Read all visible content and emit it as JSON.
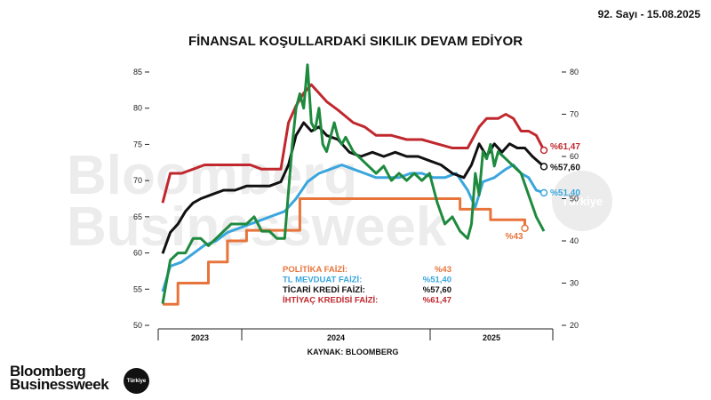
{
  "header": {
    "issue": "92. Sayı - 15.08.2025"
  },
  "brand": {
    "name_line1": "Bloomberg",
    "name_line2": "Businessweek",
    "badge": "Türkiye",
    "watermark_line1": "Bloomberg",
    "watermark_line2": "Businessweek",
    "watermark_badge": "Türkiye"
  },
  "chart_data": {
    "type": "line",
    "title": "FİNANSAL KOŞULLARDAKİ SIKILIK DEVAM EDİYOR",
    "source": "KAYNAK: BLOOMBERG",
    "grid": false,
    "x_ticks": [
      "2023",
      "2024",
      "2025"
    ],
    "y_left": {
      "lim": [
        50,
        85
      ],
      "ticks": [
        50,
        55,
        60,
        65,
        70,
        75,
        80,
        85
      ]
    },
    "y_right": {
      "lim": [
        20,
        80
      ],
      "ticks": [
        20,
        30,
        40,
        50,
        60,
        70,
        80
      ]
    },
    "legend_position": "bottom-center",
    "series": [
      {
        "name": "POLİTİKA FAİZİ:",
        "value_label": "%43",
        "end_label": "%43",
        "color": "#e8743b",
        "axis": "right",
        "points": [
          [
            0.0,
            25
          ],
          [
            0.04,
            25
          ],
          [
            0.04,
            30
          ],
          [
            0.12,
            30
          ],
          [
            0.12,
            35
          ],
          [
            0.17,
            35
          ],
          [
            0.17,
            40
          ],
          [
            0.22,
            40
          ],
          [
            0.22,
            42.5
          ],
          [
            0.36,
            42.5
          ],
          [
            0.36,
            50
          ],
          [
            0.78,
            50
          ],
          [
            0.78,
            47.5
          ],
          [
            0.86,
            47.5
          ],
          [
            0.86,
            45
          ],
          [
            0.95,
            45
          ],
          [
            0.95,
            43
          ]
        ]
      },
      {
        "name": "TL MEVDUAT FAİZİ:",
        "value_label": "%51,40",
        "end_label": "%51,40",
        "color": "#3aa6dd",
        "axis": "right",
        "points": [
          [
            0.0,
            28
          ],
          [
            0.02,
            34
          ],
          [
            0.05,
            35
          ],
          [
            0.08,
            37
          ],
          [
            0.11,
            39
          ],
          [
            0.14,
            40
          ],
          [
            0.17,
            42
          ],
          [
            0.2,
            43
          ],
          [
            0.23,
            44
          ],
          [
            0.26,
            45
          ],
          [
            0.29,
            46
          ],
          [
            0.32,
            47
          ],
          [
            0.35,
            50
          ],
          [
            0.38,
            54
          ],
          [
            0.41,
            56
          ],
          [
            0.44,
            57
          ],
          [
            0.47,
            58
          ],
          [
            0.5,
            57
          ],
          [
            0.53,
            56
          ],
          [
            0.56,
            55
          ],
          [
            0.59,
            55
          ],
          [
            0.62,
            55
          ],
          [
            0.65,
            56
          ],
          [
            0.68,
            56
          ],
          [
            0.71,
            55
          ],
          [
            0.74,
            55
          ],
          [
            0.77,
            56
          ],
          [
            0.8,
            52
          ],
          [
            0.82,
            48
          ],
          [
            0.84,
            54
          ],
          [
            0.87,
            55
          ],
          [
            0.9,
            57
          ],
          [
            0.92,
            58
          ],
          [
            0.94,
            56
          ],
          [
            0.96,
            55
          ],
          [
            0.98,
            52
          ],
          [
            1.0,
            51.4
          ]
        ]
      },
      {
        "name": "TİCARİ KREDİ FAİZİ:",
        "value_label": "%57,60",
        "end_label": "%57,60",
        "color": "#111111",
        "axis": "right",
        "points": [
          [
            0.0,
            37
          ],
          [
            0.02,
            42
          ],
          [
            0.04,
            44
          ],
          [
            0.06,
            47
          ],
          [
            0.08,
            49
          ],
          [
            0.1,
            50
          ],
          [
            0.13,
            51
          ],
          [
            0.16,
            52
          ],
          [
            0.19,
            52
          ],
          [
            0.22,
            53
          ],
          [
            0.25,
            53
          ],
          [
            0.28,
            53
          ],
          [
            0.31,
            54
          ],
          [
            0.33,
            58
          ],
          [
            0.35,
            65
          ],
          [
            0.37,
            68
          ],
          [
            0.39,
            66
          ],
          [
            0.41,
            67
          ],
          [
            0.43,
            65
          ],
          [
            0.46,
            64
          ],
          [
            0.49,
            61
          ],
          [
            0.52,
            60
          ],
          [
            0.55,
            61
          ],
          [
            0.58,
            60
          ],
          [
            0.61,
            61
          ],
          [
            0.64,
            60
          ],
          [
            0.67,
            60
          ],
          [
            0.7,
            59
          ],
          [
            0.73,
            58
          ],
          [
            0.76,
            56
          ],
          [
            0.79,
            55
          ],
          [
            0.81,
            58
          ],
          [
            0.83,
            63
          ],
          [
            0.85,
            60
          ],
          [
            0.87,
            63
          ],
          [
            0.89,
            61
          ],
          [
            0.91,
            63
          ],
          [
            0.93,
            62
          ],
          [
            0.95,
            62
          ],
          [
            0.97,
            60
          ],
          [
            1.0,
            57.6
          ]
        ]
      },
      {
        "name": "İHTİYAÇ KREDİSİ FAİZİ:",
        "value_label": "%61,47",
        "end_label": "%61,47",
        "color": "#c0282e",
        "axis": "right",
        "points": [
          [
            0.0,
            49
          ],
          [
            0.02,
            56
          ],
          [
            0.05,
            56
          ],
          [
            0.08,
            57
          ],
          [
            0.11,
            58
          ],
          [
            0.14,
            58
          ],
          [
            0.17,
            58
          ],
          [
            0.2,
            58
          ],
          [
            0.23,
            58
          ],
          [
            0.26,
            57
          ],
          [
            0.29,
            57
          ],
          [
            0.31,
            57
          ],
          [
            0.33,
            68
          ],
          [
            0.35,
            72
          ],
          [
            0.37,
            75
          ],
          [
            0.39,
            77
          ],
          [
            0.41,
            75
          ],
          [
            0.43,
            73
          ],
          [
            0.46,
            71
          ],
          [
            0.5,
            68
          ],
          [
            0.53,
            67
          ],
          [
            0.56,
            65
          ],
          [
            0.6,
            65
          ],
          [
            0.64,
            64
          ],
          [
            0.68,
            64
          ],
          [
            0.72,
            63
          ],
          [
            0.76,
            62
          ],
          [
            0.8,
            62
          ],
          [
            0.83,
            67
          ],
          [
            0.85,
            69
          ],
          [
            0.88,
            69
          ],
          [
            0.9,
            70
          ],
          [
            0.92,
            69
          ],
          [
            0.94,
            66
          ],
          [
            0.96,
            66
          ],
          [
            0.98,
            65
          ],
          [
            1.0,
            61.47
          ]
        ]
      },
      {
        "name": "",
        "color": "#1e8a3e",
        "axis": "left",
        "points": [
          [
            0.0,
            53
          ],
          [
            0.02,
            59
          ],
          [
            0.04,
            60
          ],
          [
            0.06,
            60
          ],
          [
            0.08,
            62
          ],
          [
            0.1,
            62
          ],
          [
            0.12,
            61
          ],
          [
            0.14,
            62
          ],
          [
            0.16,
            63
          ],
          [
            0.18,
            64
          ],
          [
            0.2,
            64
          ],
          [
            0.22,
            64
          ],
          [
            0.24,
            65
          ],
          [
            0.26,
            63
          ],
          [
            0.28,
            63
          ],
          [
            0.3,
            62
          ],
          [
            0.32,
            62
          ],
          [
            0.34,
            75
          ],
          [
            0.35,
            80
          ],
          [
            0.36,
            82
          ],
          [
            0.37,
            80
          ],
          [
            0.38,
            86
          ],
          [
            0.39,
            78
          ],
          [
            0.4,
            77
          ],
          [
            0.41,
            80
          ],
          [
            0.42,
            75
          ],
          [
            0.43,
            74
          ],
          [
            0.45,
            78
          ],
          [
            0.46,
            76
          ],
          [
            0.47,
            75
          ],
          [
            0.48,
            76
          ],
          [
            0.5,
            74
          ],
          [
            0.52,
            73
          ],
          [
            0.54,
            72
          ],
          [
            0.56,
            71
          ],
          [
            0.58,
            72
          ],
          [
            0.6,
            70
          ],
          [
            0.62,
            71
          ],
          [
            0.64,
            70
          ],
          [
            0.66,
            71
          ],
          [
            0.68,
            70
          ],
          [
            0.7,
            71
          ],
          [
            0.72,
            67
          ],
          [
            0.74,
            64
          ],
          [
            0.76,
            65
          ],
          [
            0.78,
            63
          ],
          [
            0.8,
            62
          ],
          [
            0.81,
            64
          ],
          [
            0.82,
            71
          ],
          [
            0.83,
            68
          ],
          [
            0.84,
            74
          ],
          [
            0.85,
            73
          ],
          [
            0.86,
            75
          ],
          [
            0.87,
            72
          ],
          [
            0.88,
            74
          ],
          [
            0.9,
            73
          ],
          [
            0.92,
            72
          ],
          [
            0.94,
            71
          ],
          [
            0.96,
            68
          ],
          [
            0.98,
            65
          ],
          [
            1.0,
            63
          ]
        ]
      }
    ]
  }
}
